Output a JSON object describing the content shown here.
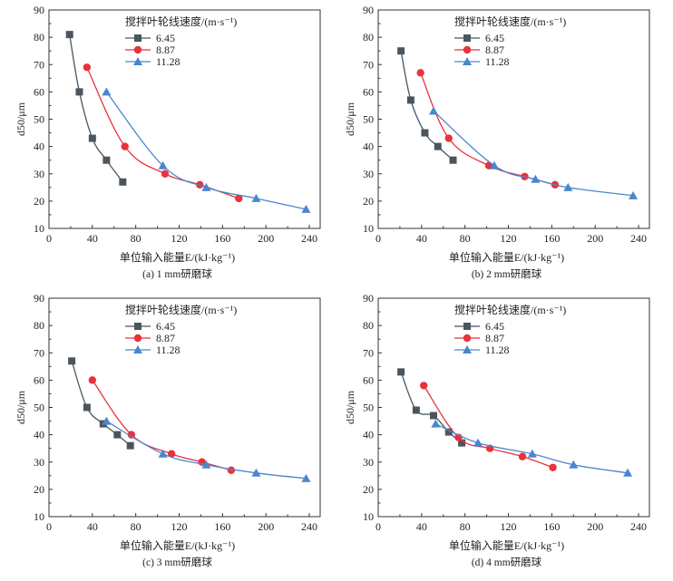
{
  "colors": {
    "6.45": "#4b555d",
    "8.87": "#e8323c",
    "11.28": "#4a86d0"
  },
  "chart_data": [
    {
      "type": "line",
      "caption": "(a) 1 mm研磨球",
      "xlabel": "单位输入能量E/(kJ·kg⁻¹)",
      "ylabel": "d50/μm",
      "legend_title": "搅拌叶轮线速度/(m·s⁻¹)",
      "legend_position": "top-center",
      "xlim": [
        0,
        250
      ],
      "ylim": [
        10,
        90
      ],
      "xticks": [
        0,
        40,
        80,
        120,
        160,
        200,
        240
      ],
      "yticks": [
        10,
        20,
        30,
        40,
        50,
        60,
        70,
        80,
        90
      ],
      "series": [
        {
          "name": "6.45",
          "marker": "square",
          "x": [
            19,
            28,
            40,
            53,
            68
          ],
          "y": [
            81,
            60,
            43,
            35,
            27
          ]
        },
        {
          "name": "8.87",
          "marker": "circle",
          "x": [
            35,
            70,
            107,
            139,
            175
          ],
          "y": [
            69,
            40,
            30,
            26,
            21
          ]
        },
        {
          "name": "11.28",
          "marker": "triangle",
          "x": [
            53,
            105,
            145,
            191,
            237
          ],
          "y": [
            60,
            33,
            25,
            21,
            17
          ]
        }
      ]
    },
    {
      "type": "line",
      "caption": "(b) 2 mm研磨球",
      "xlabel": "单位输入能量E/(kJ·kg⁻¹)",
      "ylabel": "d50/μm",
      "legend_title": "搅拌叶轮线速度/(m·s⁻¹)",
      "legend_position": "top-center",
      "xlim": [
        0,
        250
      ],
      "ylim": [
        10,
        90
      ],
      "xticks": [
        0,
        40,
        80,
        120,
        160,
        200,
        240
      ],
      "yticks": [
        10,
        20,
        30,
        40,
        50,
        60,
        70,
        80,
        90
      ],
      "series": [
        {
          "name": "6.45",
          "marker": "square",
          "x": [
            21,
            30,
            43,
            55,
            69
          ],
          "y": [
            75,
            57,
            45,
            40,
            35
          ]
        },
        {
          "name": "8.87",
          "marker": "circle",
          "x": [
            39,
            65,
            102,
            135,
            163
          ],
          "y": [
            67,
            43,
            33,
            29,
            26
          ]
        },
        {
          "name": "11.28",
          "marker": "triangle",
          "x": [
            51,
            107,
            145,
            175,
            235
          ],
          "y": [
            53,
            33,
            28,
            25,
            22
          ]
        }
      ]
    },
    {
      "type": "line",
      "caption": "(c) 3 mm研磨球",
      "xlabel": "单位输入能量E/(kJ·kg⁻¹)",
      "ylabel": "d50/μm",
      "legend_title": "搅拌叶轮线速度/(m·s⁻¹)",
      "legend_position": "top-center",
      "xlim": [
        0,
        250
      ],
      "ylim": [
        10,
        90
      ],
      "xticks": [
        0,
        40,
        80,
        120,
        160,
        200,
        240
      ],
      "yticks": [
        10,
        20,
        30,
        40,
        50,
        60,
        70,
        80,
        90
      ],
      "series": [
        {
          "name": "6.45",
          "marker": "square",
          "x": [
            21,
            35,
            50,
            63,
            75
          ],
          "y": [
            67,
            50,
            44,
            40,
            36
          ]
        },
        {
          "name": "8.87",
          "marker": "circle",
          "x": [
            40,
            76,
            113,
            141,
            168
          ],
          "y": [
            60,
            40,
            33,
            30,
            27
          ]
        },
        {
          "name": "11.28",
          "marker": "triangle",
          "x": [
            53,
            105,
            145,
            191,
            237
          ],
          "y": [
            45,
            33,
            29,
            26,
            24
          ]
        }
      ]
    },
    {
      "type": "line",
      "caption": "(d) 4 mm研磨球",
      "xlabel": "单位输入能量E/(kJ·kg⁻¹)",
      "ylabel": "d50/μm",
      "legend_title": "搅拌叶轮线速度/(m·s⁻¹)",
      "legend_position": "top-center",
      "xlim": [
        0,
        250
      ],
      "ylim": [
        10,
        90
      ],
      "xticks": [
        0,
        40,
        80,
        120,
        160,
        200,
        240
      ],
      "yticks": [
        10,
        20,
        30,
        40,
        50,
        60,
        70,
        80,
        90
      ],
      "series": [
        {
          "name": "6.45",
          "marker": "square",
          "x": [
            21,
            35,
            51,
            65,
            77
          ],
          "y": [
            63,
            49,
            47,
            41,
            37
          ]
        },
        {
          "name": "8.87",
          "marker": "circle",
          "x": [
            42,
            74,
            103,
            133,
            161
          ],
          "y": [
            58,
            39,
            35,
            32,
            28
          ]
        },
        {
          "name": "11.28",
          "marker": "triangle",
          "x": [
            53,
            92,
            142,
            180,
            230
          ],
          "y": [
            44,
            37,
            33,
            29,
            26
          ]
        }
      ]
    }
  ]
}
